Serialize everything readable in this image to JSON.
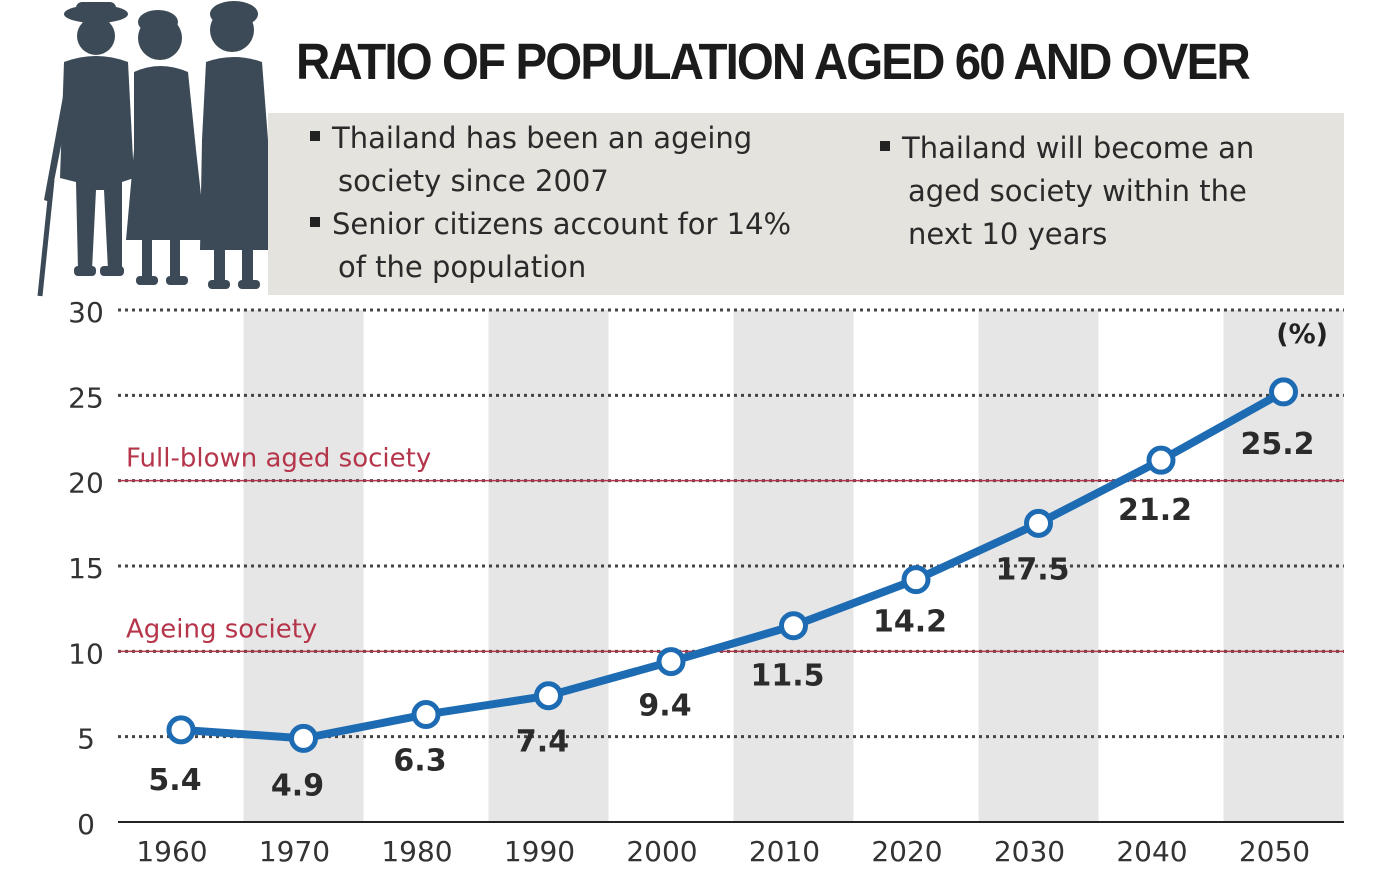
{
  "title": "RATIO OF POPULATION AGED 60 AND OVER",
  "notes": {
    "left": [
      {
        "line1": "Thailand has been an ageing",
        "line2": "society since 2007"
      },
      {
        "line1": "Senior citizens account for 14%",
        "line2": "of the population"
      }
    ],
    "right": {
      "line1": "Thailand will become an",
      "line2": "aged society within the",
      "line3": "next 10 years"
    }
  },
  "chart_data": {
    "type": "line",
    "x": [
      "1960",
      "1970",
      "1980",
      "1990",
      "2000",
      "2010",
      "2020",
      "2030",
      "2040",
      "2050"
    ],
    "values": [
      5.4,
      4.9,
      6.3,
      7.4,
      9.4,
      11.5,
      14.2,
      17.5,
      21.2,
      25.2
    ],
    "data_labels": [
      "5.4",
      "4.9",
      "6.3",
      "7.4",
      "9.4",
      "11.5",
      "14.2",
      "17.5",
      "21.2",
      "25.2"
    ],
    "yticks": [
      "0",
      "5",
      "10",
      "15",
      "20",
      "25",
      "30"
    ],
    "ylim": [
      0,
      30
    ],
    "unit": "(%)",
    "thresholds": [
      {
        "label": "Full-blown aged society",
        "value": 20
      },
      {
        "label": "Ageing society",
        "value": 10
      }
    ],
    "grid": true,
    "line_color": "#1d6bb3",
    "threshold_color": "#b5354a",
    "band_color": "#e6e6e6"
  }
}
